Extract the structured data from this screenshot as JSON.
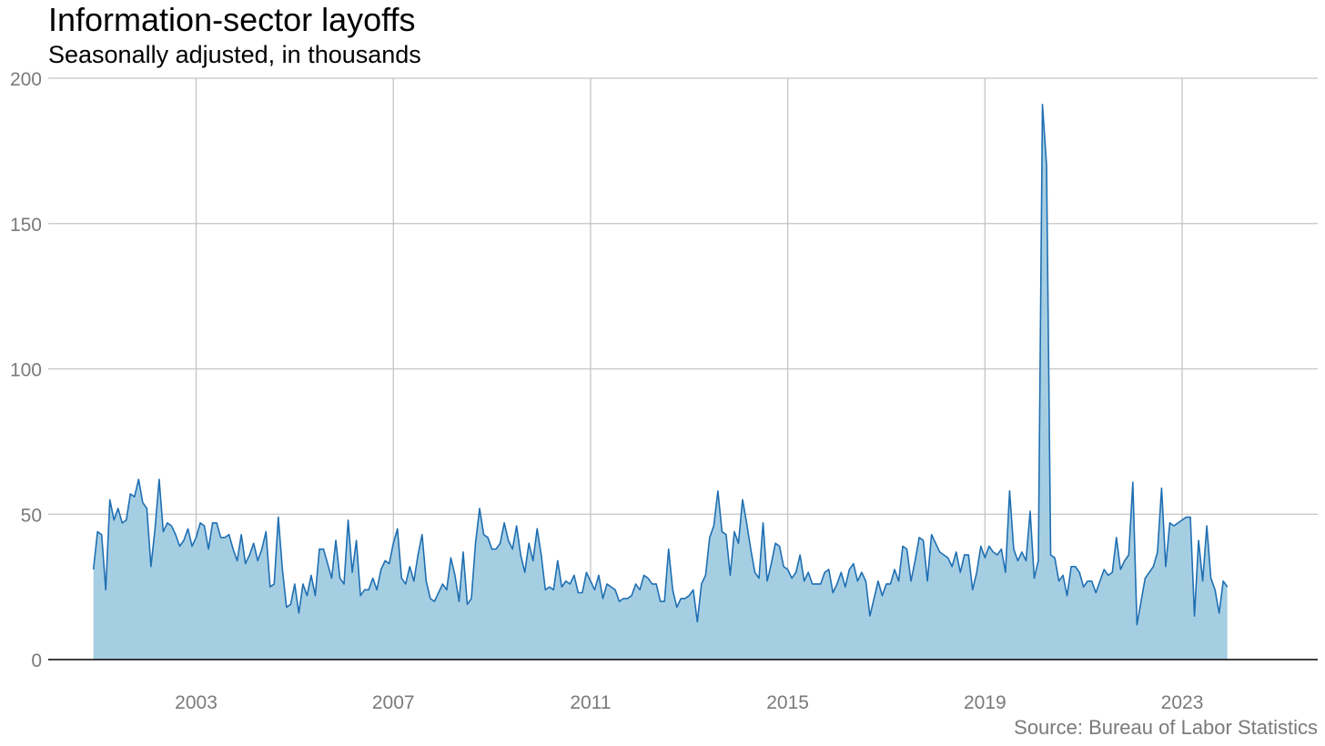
{
  "chart_data": {
    "type": "area",
    "title": "Information-sector layoffs",
    "subtitle": "Seasonally adjusted, in thousands",
    "source": "Source: Bureau of Labor Statistics",
    "xlabel": "",
    "ylabel": "",
    "x_ticks": [
      "2003",
      "2007",
      "2011",
      "2015",
      "2019",
      "2023"
    ],
    "y_ticks": [
      "0",
      "50",
      "100",
      "150",
      "200"
    ],
    "ylim": [
      0,
      200
    ],
    "xlim": [
      "2000-01",
      "2025-10"
    ],
    "grid": true,
    "legend": "none",
    "x_start": "2000-12",
    "x_step": "month",
    "series": [
      {
        "values": [
          31,
          44,
          43,
          24,
          55,
          48,
          52,
          47,
          48,
          57,
          56,
          62,
          54,
          52,
          32,
          45,
          62,
          44,
          47,
          46,
          43,
          39,
          41,
          45,
          39,
          42,
          47,
          46,
          38,
          47,
          47,
          42,
          42,
          43,
          38,
          34,
          43,
          33,
          36,
          40,
          34,
          38,
          44,
          25,
          26,
          49,
          31,
          18,
          19,
          26,
          16,
          26,
          22,
          29,
          22,
          38,
          38,
          33,
          28,
          41,
          28,
          26,
          48,
          30,
          41,
          22,
          24,
          24,
          28,
          24,
          31,
          34,
          33,
          40,
          45,
          28,
          26,
          32,
          27,
          36,
          43,
          27,
          21,
          20,
          23,
          26,
          24,
          35,
          29,
          20,
          37,
          19,
          21,
          40,
          52,
          43,
          42,
          38,
          38,
          40,
          47,
          41,
          38,
          46,
          36,
          30,
          40,
          34,
          45,
          36,
          24,
          25,
          24,
          34,
          25,
          27,
          26,
          29,
          23,
          23,
          30,
          27,
          24,
          29,
          21,
          26,
          25,
          24,
          20,
          21,
          21,
          22,
          26,
          24,
          29,
          28,
          26,
          26,
          20,
          20,
          38,
          24,
          18,
          21,
          21,
          22,
          24,
          13,
          26,
          29,
          42,
          46,
          58,
          44,
          43,
          29,
          44,
          40,
          55,
          47,
          38,
          30,
          28,
          47,
          27,
          33,
          40,
          39,
          32,
          31,
          28,
          30,
          36,
          27,
          30,
          26,
          26,
          26,
          30,
          31,
          23,
          26,
          30,
          25,
          31,
          33,
          27,
          30,
          27,
          15,
          21,
          27,
          22,
          26,
          26,
          31,
          27,
          39,
          38,
          27,
          34,
          42,
          41,
          27,
          43,
          40,
          37,
          36,
          35,
          32,
          37,
          30,
          36,
          36,
          24,
          30,
          39,
          35,
          39,
          37,
          36,
          38,
          30,
          58,
          38,
          34,
          37,
          34,
          51,
          28,
          34,
          191,
          170,
          36,
          35,
          27,
          29,
          22,
          32,
          32,
          30,
          25,
          27,
          27,
          23,
          27,
          31,
          29,
          30,
          42,
          31,
          34,
          36,
          61,
          12,
          20,
          28,
          30,
          32,
          37,
          59,
          32,
          47,
          46,
          47,
          48,
          49,
          49,
          15,
          41,
          27,
          46,
          28,
          24,
          16,
          27,
          25
        ],
        "color": "#1f6fb2",
        "fill": "#a6cee3"
      }
    ]
  },
  "colors": {
    "line": "#1f6fb2",
    "fill": "#a6cee3",
    "grid": "#c4c4c4",
    "axis": "#000000",
    "tick_text": "#7a7a7a"
  }
}
